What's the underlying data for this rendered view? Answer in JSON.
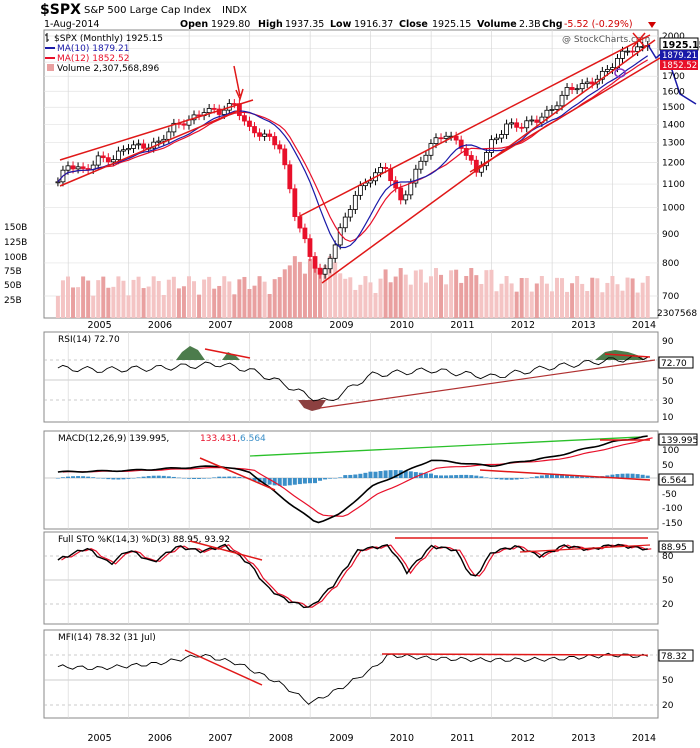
{
  "header": {
    "symbol": "$SPX",
    "name": "S&P 500 Large Cap Index",
    "exchange": "INDX",
    "date": "1-Aug-2014",
    "open_label": "Open",
    "open": "1929.80",
    "high_label": "High",
    "high": "1937.35",
    "low_label": "Low",
    "low": "1916.37",
    "close_label": "Close",
    "close": "1925.15",
    "volume_label": "Volume",
    "volume": "2.3B",
    "chg_label": "Chg",
    "chg": "-5.52 (-0.29%)",
    "watermark": "@ StockCharts.com"
  },
  "legend": {
    "price": "$SPX (Monthly) 1925.15",
    "ma10": "MA(10) 1879.21",
    "ma12": "MA(12) 1852.52",
    "volume": "Volume 2,307,568,896"
  },
  "colors": {
    "up": "#000000",
    "down": "#e8102a",
    "ma10": "#1a1aa8",
    "ma12": "#e8102a",
    "trend": "#e01818",
    "vol_up": "#f4c4c4",
    "vol_down": "#e9a0a0",
    "rsi_fill_high": "#4c7c4c",
    "rsi_fill_low": "#8c4040",
    "macd_hist": "#3b8fc8",
    "macd_signal": "#e8102a",
    "macd_long": "#2ac02a"
  },
  "x_axis": {
    "top_labels": [
      "2005",
      "2006",
      "2007",
      "2008",
      "2009",
      "2010",
      "2011",
      "2012",
      "2013",
      "2014"
    ],
    "bottom_labels": [
      "2005",
      "2006",
      "2007",
      "2008",
      "2009",
      "2010",
      "2011",
      "2012",
      "2013",
      "2014"
    ]
  },
  "price_panel": {
    "right_ticks": [
      "2000",
      "1900",
      "1800",
      "1700",
      "1600",
      "1500",
      "1400",
      "1300",
      "1200",
      "1100",
      "1000",
      "900",
      "800",
      "700"
    ],
    "last_price": "1925.15",
    "last_ma10": "1879.21",
    "last_ma12": "1852.52",
    "volume_ticks": [
      "150B",
      "125B",
      "100B",
      "75B",
      "50B",
      "25B"
    ],
    "last_volume": "2307568"
  },
  "rsi_panel": {
    "title": "RSI(14) 72.70",
    "ticks": [
      "90",
      "70",
      "50",
      "30",
      "10"
    ],
    "last": "72.70"
  },
  "macd_panel": {
    "title_main": "MACD(12,26,9) 139.995,",
    "title_signal": "133.431,",
    "title_hist": "6.564",
    "ticks": [
      "150",
      "100",
      "50",
      "0",
      "-50",
      "-100",
      "-150"
    ],
    "last_macd": "139.995",
    "last_hist": "6.564"
  },
  "sto_panel": {
    "title": "Full STO %K(14,3) %D(3) 88.95, 93.92",
    "ticks": [
      "80",
      "50",
      "20"
    ],
    "last": "88.95"
  },
  "mfi_panel": {
    "title": "MFI(14) 78.32 (31 Jul)",
    "ticks": [
      "80",
      "50",
      "20"
    ],
    "last": "78.32"
  },
  "chart_data": {
    "type": "line",
    "title": "$SPX S&P 500 Large Cap Index INDX",
    "interval": "monthly",
    "y_scale": "log",
    "ylim": [
      650,
      2050
    ],
    "price_series": {
      "name": "$SPX (Monthly)",
      "x": [
        2004.83,
        2005.0,
        2005.25,
        2005.5,
        2005.75,
        2006.0,
        2006.25,
        2006.5,
        2006.75,
        2007.0,
        2007.25,
        2007.5,
        2007.75,
        2008.0,
        2008.25,
        2008.5,
        2008.75,
        2009.0,
        2009.2,
        2009.5,
        2009.75,
        2010.0,
        2010.25,
        2010.5,
        2010.75,
        2011.0,
        2011.25,
        2011.5,
        2011.75,
        2012.0,
        2012.25,
        2012.5,
        2012.75,
        2013.0,
        2013.25,
        2013.5,
        2013.75,
        2014.0,
        2014.25,
        2014.58
      ],
      "close": [
        1110,
        1180,
        1160,
        1230,
        1210,
        1280,
        1290,
        1300,
        1380,
        1430,
        1490,
        1460,
        1520,
        1380,
        1330,
        1270,
        980,
        820,
        740,
        920,
        1060,
        1120,
        1180,
        1030,
        1150,
        1290,
        1360,
        1280,
        1140,
        1310,
        1400,
        1380,
        1430,
        1500,
        1600,
        1630,
        1700,
        1780,
        1880,
        1925.15
      ]
    },
    "ma10_last": 1879.21,
    "ma12_last": 1852.52,
    "volume_last": 2307568896,
    "rsi": {
      "last": 72.7,
      "levels": [
        30,
        70
      ],
      "x": [
        2004.83,
        2005.5,
        2006.5,
        2007.5,
        2008.0,
        2008.5,
        2009.0,
        2009.3,
        2010.0,
        2011.0,
        2012.0,
        2013.0,
        2014.0,
        2014.58
      ],
      "values": [
        62,
        60,
        62,
        66,
        60,
        48,
        33,
        28,
        55,
        60,
        53,
        63,
        70,
        72.7
      ]
    },
    "macd": {
      "macd_last": 139.995,
      "signal_last": 133.431,
      "hist_last": 6.564,
      "x": [
        2004.83,
        2006.0,
        2007.5,
        2008.0,
        2008.5,
        2009.1,
        2009.5,
        2010.0,
        2011.0,
        2012.0,
        2013.0,
        2014.0,
        2014.58
      ],
      "values": [
        20,
        25,
        40,
        20,
        -60,
        -150,
        -120,
        -30,
        60,
        40,
        70,
        120,
        139.995
      ]
    },
    "stochastic": {
      "k_last": 88.95,
      "d_last": 93.92,
      "levels": [
        20,
        80
      ]
    },
    "mfi": {
      "last": 78.32,
      "date": "31 Jul",
      "levels": [
        20,
        80
      ]
    }
  }
}
